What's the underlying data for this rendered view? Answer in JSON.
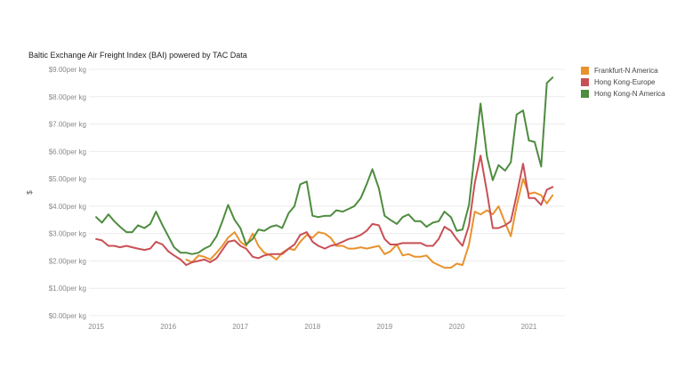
{
  "chart_data": {
    "type": "line",
    "title": "Baltic Exchange Air Freight Index (BAI) powered by TAC Data",
    "ylabel": "$",
    "xlabel": "",
    "ylim": [
      0,
      9
    ],
    "yticks": [
      0,
      1,
      2,
      3,
      4,
      5,
      6,
      7,
      8,
      9
    ],
    "yticklabels": [
      "$0.00per kg",
      "$1.00per kg",
      "$2.00per kg",
      "$3.00per kg",
      "$4.00per kg",
      "$5.00per kg",
      "$6.00per kg",
      "$7.00per kg",
      "$8.00per kg",
      "$9.00per kg"
    ],
    "xlim": [
      2014.9,
      2021.5
    ],
    "xticks": [
      2015,
      2016,
      2017,
      2018,
      2019,
      2020,
      2021
    ],
    "xticklabels": [
      "2015",
      "2016",
      "2017",
      "2018",
      "2019",
      "2020",
      "2021"
    ],
    "grid": "horizontal",
    "legend_position": "top-right",
    "series": [
      {
        "name": "Frankfurt-N America",
        "color": "#e8922d",
        "points": [
          [
            2016.25,
            2.05
          ],
          [
            2016.33,
            1.95
          ],
          [
            2016.42,
            2.2
          ],
          [
            2016.5,
            2.15
          ],
          [
            2016.58,
            2.05
          ],
          [
            2016.67,
            2.3
          ],
          [
            2016.75,
            2.55
          ],
          [
            2016.83,
            2.85
          ],
          [
            2016.92,
            3.05
          ],
          [
            2017.0,
            2.7
          ],
          [
            2017.08,
            2.55
          ],
          [
            2017.17,
            3.0
          ],
          [
            2017.25,
            2.55
          ],
          [
            2017.33,
            2.3
          ],
          [
            2017.42,
            2.2
          ],
          [
            2017.5,
            2.05
          ],
          [
            2017.58,
            2.3
          ],
          [
            2017.67,
            2.45
          ],
          [
            2017.75,
            2.4
          ],
          [
            2017.83,
            2.7
          ],
          [
            2017.92,
            2.95
          ],
          [
            2018.0,
            2.85
          ],
          [
            2018.08,
            3.05
          ],
          [
            2018.17,
            3.0
          ],
          [
            2018.25,
            2.85
          ],
          [
            2018.33,
            2.55
          ],
          [
            2018.42,
            2.55
          ],
          [
            2018.5,
            2.45
          ],
          [
            2018.58,
            2.45
          ],
          [
            2018.67,
            2.5
          ],
          [
            2018.75,
            2.45
          ],
          [
            2018.83,
            2.5
          ],
          [
            2018.92,
            2.55
          ],
          [
            2019.0,
            2.25
          ],
          [
            2019.08,
            2.35
          ],
          [
            2019.17,
            2.6
          ],
          [
            2019.25,
            2.2
          ],
          [
            2019.33,
            2.25
          ],
          [
            2019.42,
            2.15
          ],
          [
            2019.5,
            2.15
          ],
          [
            2019.58,
            2.2
          ],
          [
            2019.67,
            1.95
          ],
          [
            2019.75,
            1.85
          ],
          [
            2019.83,
            1.75
          ],
          [
            2019.92,
            1.75
          ],
          [
            2020.0,
            1.9
          ],
          [
            2020.08,
            1.85
          ],
          [
            2020.17,
            2.6
          ],
          [
            2020.25,
            3.8
          ],
          [
            2020.33,
            3.7
          ],
          [
            2020.42,
            3.85
          ],
          [
            2020.5,
            3.7
          ],
          [
            2020.58,
            4.0
          ],
          [
            2020.67,
            3.4
          ],
          [
            2020.75,
            2.9
          ],
          [
            2020.83,
            4.0
          ],
          [
            2020.92,
            5.0
          ],
          [
            2021.0,
            4.45
          ],
          [
            2021.08,
            4.5
          ],
          [
            2021.17,
            4.4
          ],
          [
            2021.25,
            4.1
          ],
          [
            2021.33,
            4.4
          ]
        ]
      },
      {
        "name": "Hong Kong-Europe",
        "color": "#c85055",
        "points": [
          [
            2015.0,
            2.8
          ],
          [
            2015.08,
            2.75
          ],
          [
            2015.17,
            2.55
          ],
          [
            2015.25,
            2.55
          ],
          [
            2015.33,
            2.5
          ],
          [
            2015.42,
            2.55
          ],
          [
            2015.5,
            2.5
          ],
          [
            2015.58,
            2.45
          ],
          [
            2015.67,
            2.4
          ],
          [
            2015.75,
            2.45
          ],
          [
            2015.83,
            2.7
          ],
          [
            2015.92,
            2.6
          ],
          [
            2016.0,
            2.35
          ],
          [
            2016.08,
            2.2
          ],
          [
            2016.17,
            2.05
          ],
          [
            2016.25,
            1.85
          ],
          [
            2016.33,
            1.95
          ],
          [
            2016.42,
            2.0
          ],
          [
            2016.5,
            2.05
          ],
          [
            2016.58,
            1.95
          ],
          [
            2016.67,
            2.1
          ],
          [
            2016.75,
            2.4
          ],
          [
            2016.83,
            2.7
          ],
          [
            2016.92,
            2.75
          ],
          [
            2017.0,
            2.55
          ],
          [
            2017.08,
            2.45
          ],
          [
            2017.17,
            2.15
          ],
          [
            2017.25,
            2.1
          ],
          [
            2017.33,
            2.2
          ],
          [
            2017.42,
            2.25
          ],
          [
            2017.5,
            2.25
          ],
          [
            2017.58,
            2.25
          ],
          [
            2017.67,
            2.45
          ],
          [
            2017.75,
            2.6
          ],
          [
            2017.83,
            2.95
          ],
          [
            2017.92,
            3.05
          ],
          [
            2018.0,
            2.7
          ],
          [
            2018.08,
            2.55
          ],
          [
            2018.17,
            2.45
          ],
          [
            2018.25,
            2.55
          ],
          [
            2018.33,
            2.6
          ],
          [
            2018.42,
            2.7
          ],
          [
            2018.5,
            2.8
          ],
          [
            2018.58,
            2.85
          ],
          [
            2018.67,
            2.95
          ],
          [
            2018.75,
            3.1
          ],
          [
            2018.83,
            3.35
          ],
          [
            2018.92,
            3.3
          ],
          [
            2019.0,
            2.8
          ],
          [
            2019.08,
            2.6
          ],
          [
            2019.17,
            2.6
          ],
          [
            2019.25,
            2.65
          ],
          [
            2019.33,
            2.65
          ],
          [
            2019.42,
            2.65
          ],
          [
            2019.5,
            2.65
          ],
          [
            2019.58,
            2.55
          ],
          [
            2019.67,
            2.55
          ],
          [
            2019.75,
            2.8
          ],
          [
            2019.83,
            3.25
          ],
          [
            2019.92,
            3.1
          ],
          [
            2020.0,
            2.8
          ],
          [
            2020.08,
            2.55
          ],
          [
            2020.17,
            3.3
          ],
          [
            2020.25,
            4.85
          ],
          [
            2020.33,
            5.85
          ],
          [
            2020.42,
            4.5
          ],
          [
            2020.5,
            3.2
          ],
          [
            2020.58,
            3.2
          ],
          [
            2020.67,
            3.3
          ],
          [
            2020.75,
            3.45
          ],
          [
            2020.83,
            4.4
          ],
          [
            2020.92,
            5.55
          ],
          [
            2021.0,
            4.3
          ],
          [
            2021.08,
            4.3
          ],
          [
            2021.17,
            4.05
          ],
          [
            2021.25,
            4.6
          ],
          [
            2021.33,
            4.7
          ]
        ]
      },
      {
        "name": "Hong Kong-N America",
        "color": "#4e8c3f",
        "points": [
          [
            2015.0,
            3.6
          ],
          [
            2015.08,
            3.4
          ],
          [
            2015.17,
            3.7
          ],
          [
            2015.25,
            3.45
          ],
          [
            2015.33,
            3.25
          ],
          [
            2015.42,
            3.05
          ],
          [
            2015.5,
            3.05
          ],
          [
            2015.58,
            3.3
          ],
          [
            2015.67,
            3.2
          ],
          [
            2015.75,
            3.35
          ],
          [
            2015.83,
            3.8
          ],
          [
            2015.92,
            3.3
          ],
          [
            2016.0,
            2.9
          ],
          [
            2016.08,
            2.5
          ],
          [
            2016.17,
            2.3
          ],
          [
            2016.25,
            2.3
          ],
          [
            2016.33,
            2.25
          ],
          [
            2016.42,
            2.3
          ],
          [
            2016.5,
            2.45
          ],
          [
            2016.58,
            2.55
          ],
          [
            2016.67,
            2.9
          ],
          [
            2016.75,
            3.45
          ],
          [
            2016.83,
            4.05
          ],
          [
            2016.92,
            3.5
          ],
          [
            2017.0,
            3.2
          ],
          [
            2017.08,
            2.6
          ],
          [
            2017.17,
            2.8
          ],
          [
            2017.25,
            3.15
          ],
          [
            2017.33,
            3.1
          ],
          [
            2017.42,
            3.25
          ],
          [
            2017.5,
            3.3
          ],
          [
            2017.58,
            3.2
          ],
          [
            2017.67,
            3.75
          ],
          [
            2017.75,
            4.0
          ],
          [
            2017.83,
            4.8
          ],
          [
            2017.92,
            4.9
          ],
          [
            2018.0,
            3.65
          ],
          [
            2018.08,
            3.6
          ],
          [
            2018.17,
            3.65
          ],
          [
            2018.25,
            3.65
          ],
          [
            2018.33,
            3.85
          ],
          [
            2018.42,
            3.8
          ],
          [
            2018.5,
            3.9
          ],
          [
            2018.58,
            4.0
          ],
          [
            2018.67,
            4.3
          ],
          [
            2018.75,
            4.8
          ],
          [
            2018.83,
            5.35
          ],
          [
            2018.92,
            4.65
          ],
          [
            2019.0,
            3.65
          ],
          [
            2019.08,
            3.5
          ],
          [
            2019.17,
            3.35
          ],
          [
            2019.25,
            3.6
          ],
          [
            2019.33,
            3.7
          ],
          [
            2019.42,
            3.45
          ],
          [
            2019.5,
            3.45
          ],
          [
            2019.58,
            3.25
          ],
          [
            2019.67,
            3.4
          ],
          [
            2019.75,
            3.45
          ],
          [
            2019.83,
            3.8
          ],
          [
            2019.92,
            3.6
          ],
          [
            2020.0,
            3.1
          ],
          [
            2020.08,
            3.15
          ],
          [
            2020.17,
            4.05
          ],
          [
            2020.25,
            5.95
          ],
          [
            2020.33,
            7.75
          ],
          [
            2020.42,
            5.8
          ],
          [
            2020.5,
            4.95
          ],
          [
            2020.58,
            5.5
          ],
          [
            2020.67,
            5.3
          ],
          [
            2020.75,
            5.6
          ],
          [
            2020.83,
            7.35
          ],
          [
            2020.92,
            7.5
          ],
          [
            2021.0,
            6.4
          ],
          [
            2021.08,
            6.35
          ],
          [
            2021.17,
            5.45
          ],
          [
            2021.25,
            8.5
          ],
          [
            2021.33,
            8.7
          ]
        ]
      }
    ]
  }
}
